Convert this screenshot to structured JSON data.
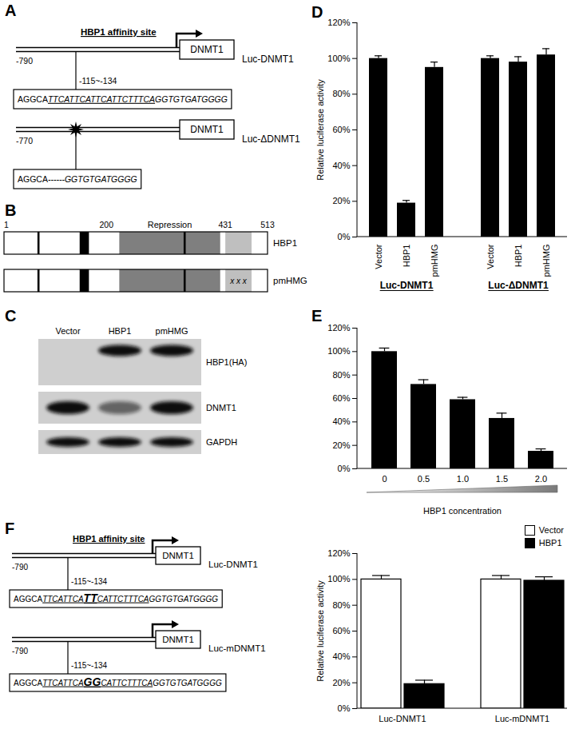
{
  "panel_A": {
    "label": "A",
    "constructs": [
      {
        "name": "Luc-DNMT1",
        "gene": "DNMT1",
        "start": "-790",
        "site": "-115~-134",
        "site_label": "HBP1 affinity site",
        "promoter_arrow": true,
        "deleted": false,
        "sequence": [
          {
            "text": "AGGCA",
            "style": "normal"
          },
          {
            "text": "TTCATTCATTCATTCTTTCA",
            "style": "italic underline"
          },
          {
            "text": "GGTGTGATGGGG",
            "style": "italic"
          }
        ]
      },
      {
        "name": "Luc-ΔDNMT1",
        "gene": "DNMT1",
        "start": "-770",
        "promoter_arrow": false,
        "deleted": true,
        "sequence": [
          {
            "text": "AGGCA",
            "style": "normal"
          },
          {
            "text": "------",
            "style": "italic"
          },
          {
            "text": "GGTGTGATGGGG",
            "style": "italic"
          }
        ]
      }
    ]
  },
  "panel_B": {
    "label": "B",
    "position_labels": [
      {
        "value": 1,
        "label": "1"
      },
      {
        "value": 200,
        "label": "200"
      },
      {
        "value": 431,
        "label": "431"
      },
      {
        "value": 513,
        "label": "513"
      }
    ],
    "domains": [
      {
        "start": 66,
        "end": 70,
        "color": "#000000"
      },
      {
        "start": 148,
        "end": 166,
        "color": "#000000"
      },
      {
        "start": 225,
        "end": 421,
        "color": "#7f7f7f",
        "label": "Repression"
      },
      {
        "start": 350,
        "end": 354,
        "color": "#000000"
      },
      {
        "start": 431,
        "end": 482,
        "color": "#bfbfbf"
      }
    ],
    "proteins": [
      {
        "name": "HBP1"
      },
      {
        "name": "pmHMG",
        "mutation": {
          "text": "x x x",
          "start": 431,
          "end": 482
        }
      }
    ]
  },
  "panel_C": {
    "label": "C",
    "lanes": [
      "Vector",
      "HBP1",
      "pmHMG"
    ],
    "rows": [
      {
        "label": "HBP1(HA)",
        "bands": [
          0,
          1,
          1
        ]
      },
      {
        "label": "DNMT1",
        "bands": [
          1,
          0.55,
          1
        ]
      },
      {
        "label": "GAPDH",
        "bands": [
          1,
          1,
          1
        ]
      }
    ]
  },
  "panel_F_diagram": {
    "label": "F",
    "constructs": [
      {
        "name": "Luc-DNMT1",
        "gene": "DNMT1",
        "start": "-790",
        "site": "-115~-134",
        "site_label": "HBP1 affinity site",
        "promoter_arrow": true,
        "deleted": false,
        "sequence": [
          {
            "text": "AGGCA",
            "style": "normal"
          },
          {
            "text": "TTCATTCA",
            "style": "italic underline"
          },
          {
            "text": "TT",
            "style": "italic underline large"
          },
          {
            "text": "CATTCTTTCA",
            "style": "italic underline"
          },
          {
            "text": "GGTGTGATGGGG",
            "style": "italic"
          }
        ]
      },
      {
        "name": "Luc-mDNMT1",
        "gene": "DNMT1",
        "start": "-790",
        "site": "-115~-134",
        "promoter_arrow": true,
        "deleted": false,
        "sequence": [
          {
            "text": "AGGCA",
            "style": "normal"
          },
          {
            "text": "TTCATTCA",
            "style": "italic underline"
          },
          {
            "text": "GG",
            "style": "italic underline large"
          },
          {
            "text": "CATTCTTTCA",
            "style": "italic underline"
          },
          {
            "text": "GGTGTGATGGGG",
            "style": "italic"
          }
        ]
      }
    ]
  },
  "chart_data": [
    {
      "panel": "D",
      "type": "bar",
      "ylabel": "Relative luciferase activity",
      "categories": [
        "Vector",
        "HBP1",
        "pmHMG",
        null,
        "Vector",
        "HBP1",
        "pmHMG"
      ],
      "values": [
        100,
        19,
        95,
        null,
        100,
        98,
        102
      ],
      "errors": [
        1.5,
        1.5,
        3,
        null,
        1.5,
        3,
        3.5
      ],
      "group_labels": [
        "Luc-DNMT1",
        "Luc-ΔDNMT1"
      ],
      "color": "#000000",
      "ylim": [
        0,
        120
      ],
      "yticks": [
        {
          "value": 0,
          "label": "0%"
        },
        {
          "value": 20,
          "label": "20%"
        },
        {
          "value": 40,
          "label": "40%"
        },
        {
          "value": 60,
          "label": "60%"
        },
        {
          "value": 80,
          "label": "80%"
        },
        {
          "value": 100,
          "label": "100%"
        },
        {
          "value": 120,
          "label": "120%"
        }
      ]
    },
    {
      "panel": "E",
      "type": "bar",
      "xlabel": "HBP1 concentration",
      "categories": [
        "0",
        "0.5",
        "1.0",
        "1.5",
        "2.0"
      ],
      "values": [
        100,
        72,
        59,
        43,
        15
      ],
      "errors": [
        3,
        4,
        2,
        4.5,
        2
      ],
      "color": "#000000",
      "ylim": [
        0,
        120
      ],
      "yticks": [
        {
          "value": 0,
          "label": "0%"
        },
        {
          "value": 20,
          "label": "20%"
        },
        {
          "value": 40,
          "label": "40%"
        },
        {
          "value": 60,
          "label": "60%"
        },
        {
          "value": 80,
          "label": "80%"
        },
        {
          "value": 100,
          "label": "100%"
        },
        {
          "value": 120,
          "label": "120%"
        }
      ]
    },
    {
      "type": "bar",
      "ylabel": "Relative luciferase activity",
      "categories": [
        "Luc-DNMT1",
        "Luc-mDNMT1"
      ],
      "series": [
        {
          "name": "Vector",
          "color": "#ffffff",
          "values": [
            100,
            100
          ],
          "errors": [
            3,
            3
          ]
        },
        {
          "name": "HBP1",
          "color": "#000000",
          "values": [
            19,
            99
          ],
          "errors": [
            3,
            3
          ]
        }
      ],
      "legend": "upper right",
      "ylim": [
        0,
        120
      ],
      "yticks": [
        {
          "value": 0,
          "label": "0%"
        },
        {
          "value": 20,
          "label": "20%"
        },
        {
          "value": 40,
          "label": "40%"
        },
        {
          "value": 60,
          "label": "60%"
        },
        {
          "value": 80,
          "label": "80%"
        },
        {
          "value": 100,
          "label": "100%"
        },
        {
          "value": 120,
          "label": "120%"
        }
      ]
    }
  ]
}
